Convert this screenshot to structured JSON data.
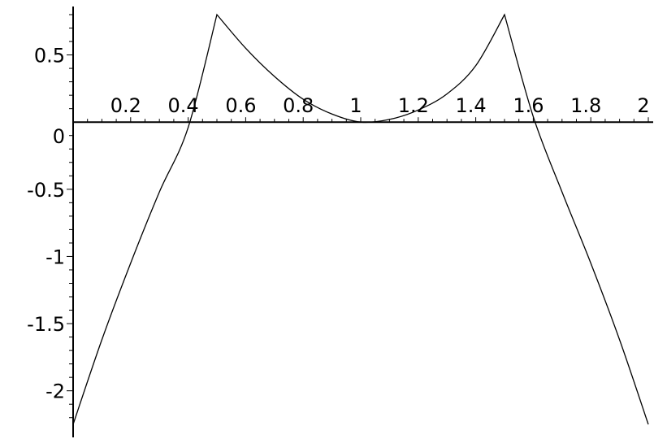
{
  "chart_data": {
    "type": "line",
    "title": "",
    "xlabel": "",
    "ylabel": "",
    "xlim": [
      0,
      2
    ],
    "ylim": [
      -2.25,
      0.8
    ],
    "grid": false,
    "x_ticks": [
      {
        "value": 0.2,
        "label": "0.2"
      },
      {
        "value": 0.4,
        "label": "0.4"
      },
      {
        "value": 0.6,
        "label": "0.6"
      },
      {
        "value": 0.8,
        "label": "0.8"
      },
      {
        "value": 1.0,
        "label": "1"
      },
      {
        "value": 1.2,
        "label": "1.2"
      },
      {
        "value": 1.4,
        "label": "1.4"
      },
      {
        "value": 1.6,
        "label": "1.6"
      },
      {
        "value": 1.8,
        "label": "1.8"
      },
      {
        "value": 2.0,
        "label": "2"
      }
    ],
    "y_ticks": [
      {
        "value": 0.5,
        "label": "0.5"
      },
      {
        "value": 0,
        "label": "0"
      },
      {
        "value": -0.5,
        "label": "-0.5"
      },
      {
        "value": -1,
        "label": "-1"
      },
      {
        "value": -1.5,
        "label": "-1.5"
      },
      {
        "value": -2,
        "label": "-2"
      }
    ],
    "series": [
      {
        "color": "#000000",
        "points": [
          {
            "x": 0.0,
            "y": -2.25
          },
          {
            "x": 0.1,
            "y": -1.62
          },
          {
            "x": 0.2,
            "y": -1.05
          },
          {
            "x": 0.3,
            "y": -0.52
          },
          {
            "x": 0.4,
            "y": -0.04
          },
          {
            "x": 0.5,
            "y": 0.8
          },
          {
            "x": 0.6,
            "y": 0.55
          },
          {
            "x": 0.7,
            "y": 0.34
          },
          {
            "x": 0.8,
            "y": 0.17
          },
          {
            "x": 0.9,
            "y": 0.06
          },
          {
            "x": 1.0,
            "y": 0.0
          },
          {
            "x": 1.1,
            "y": 0.02
          },
          {
            "x": 1.2,
            "y": 0.09
          },
          {
            "x": 1.3,
            "y": 0.21
          },
          {
            "x": 1.4,
            "y": 0.42
          },
          {
            "x": 1.5,
            "y": 0.8
          },
          {
            "x": 1.6,
            "y": 0.04
          },
          {
            "x": 1.7,
            "y": -0.52
          },
          {
            "x": 1.8,
            "y": -1.05
          },
          {
            "x": 1.9,
            "y": -1.62
          },
          {
            "x": 2.0,
            "y": -2.25
          }
        ]
      }
    ]
  }
}
